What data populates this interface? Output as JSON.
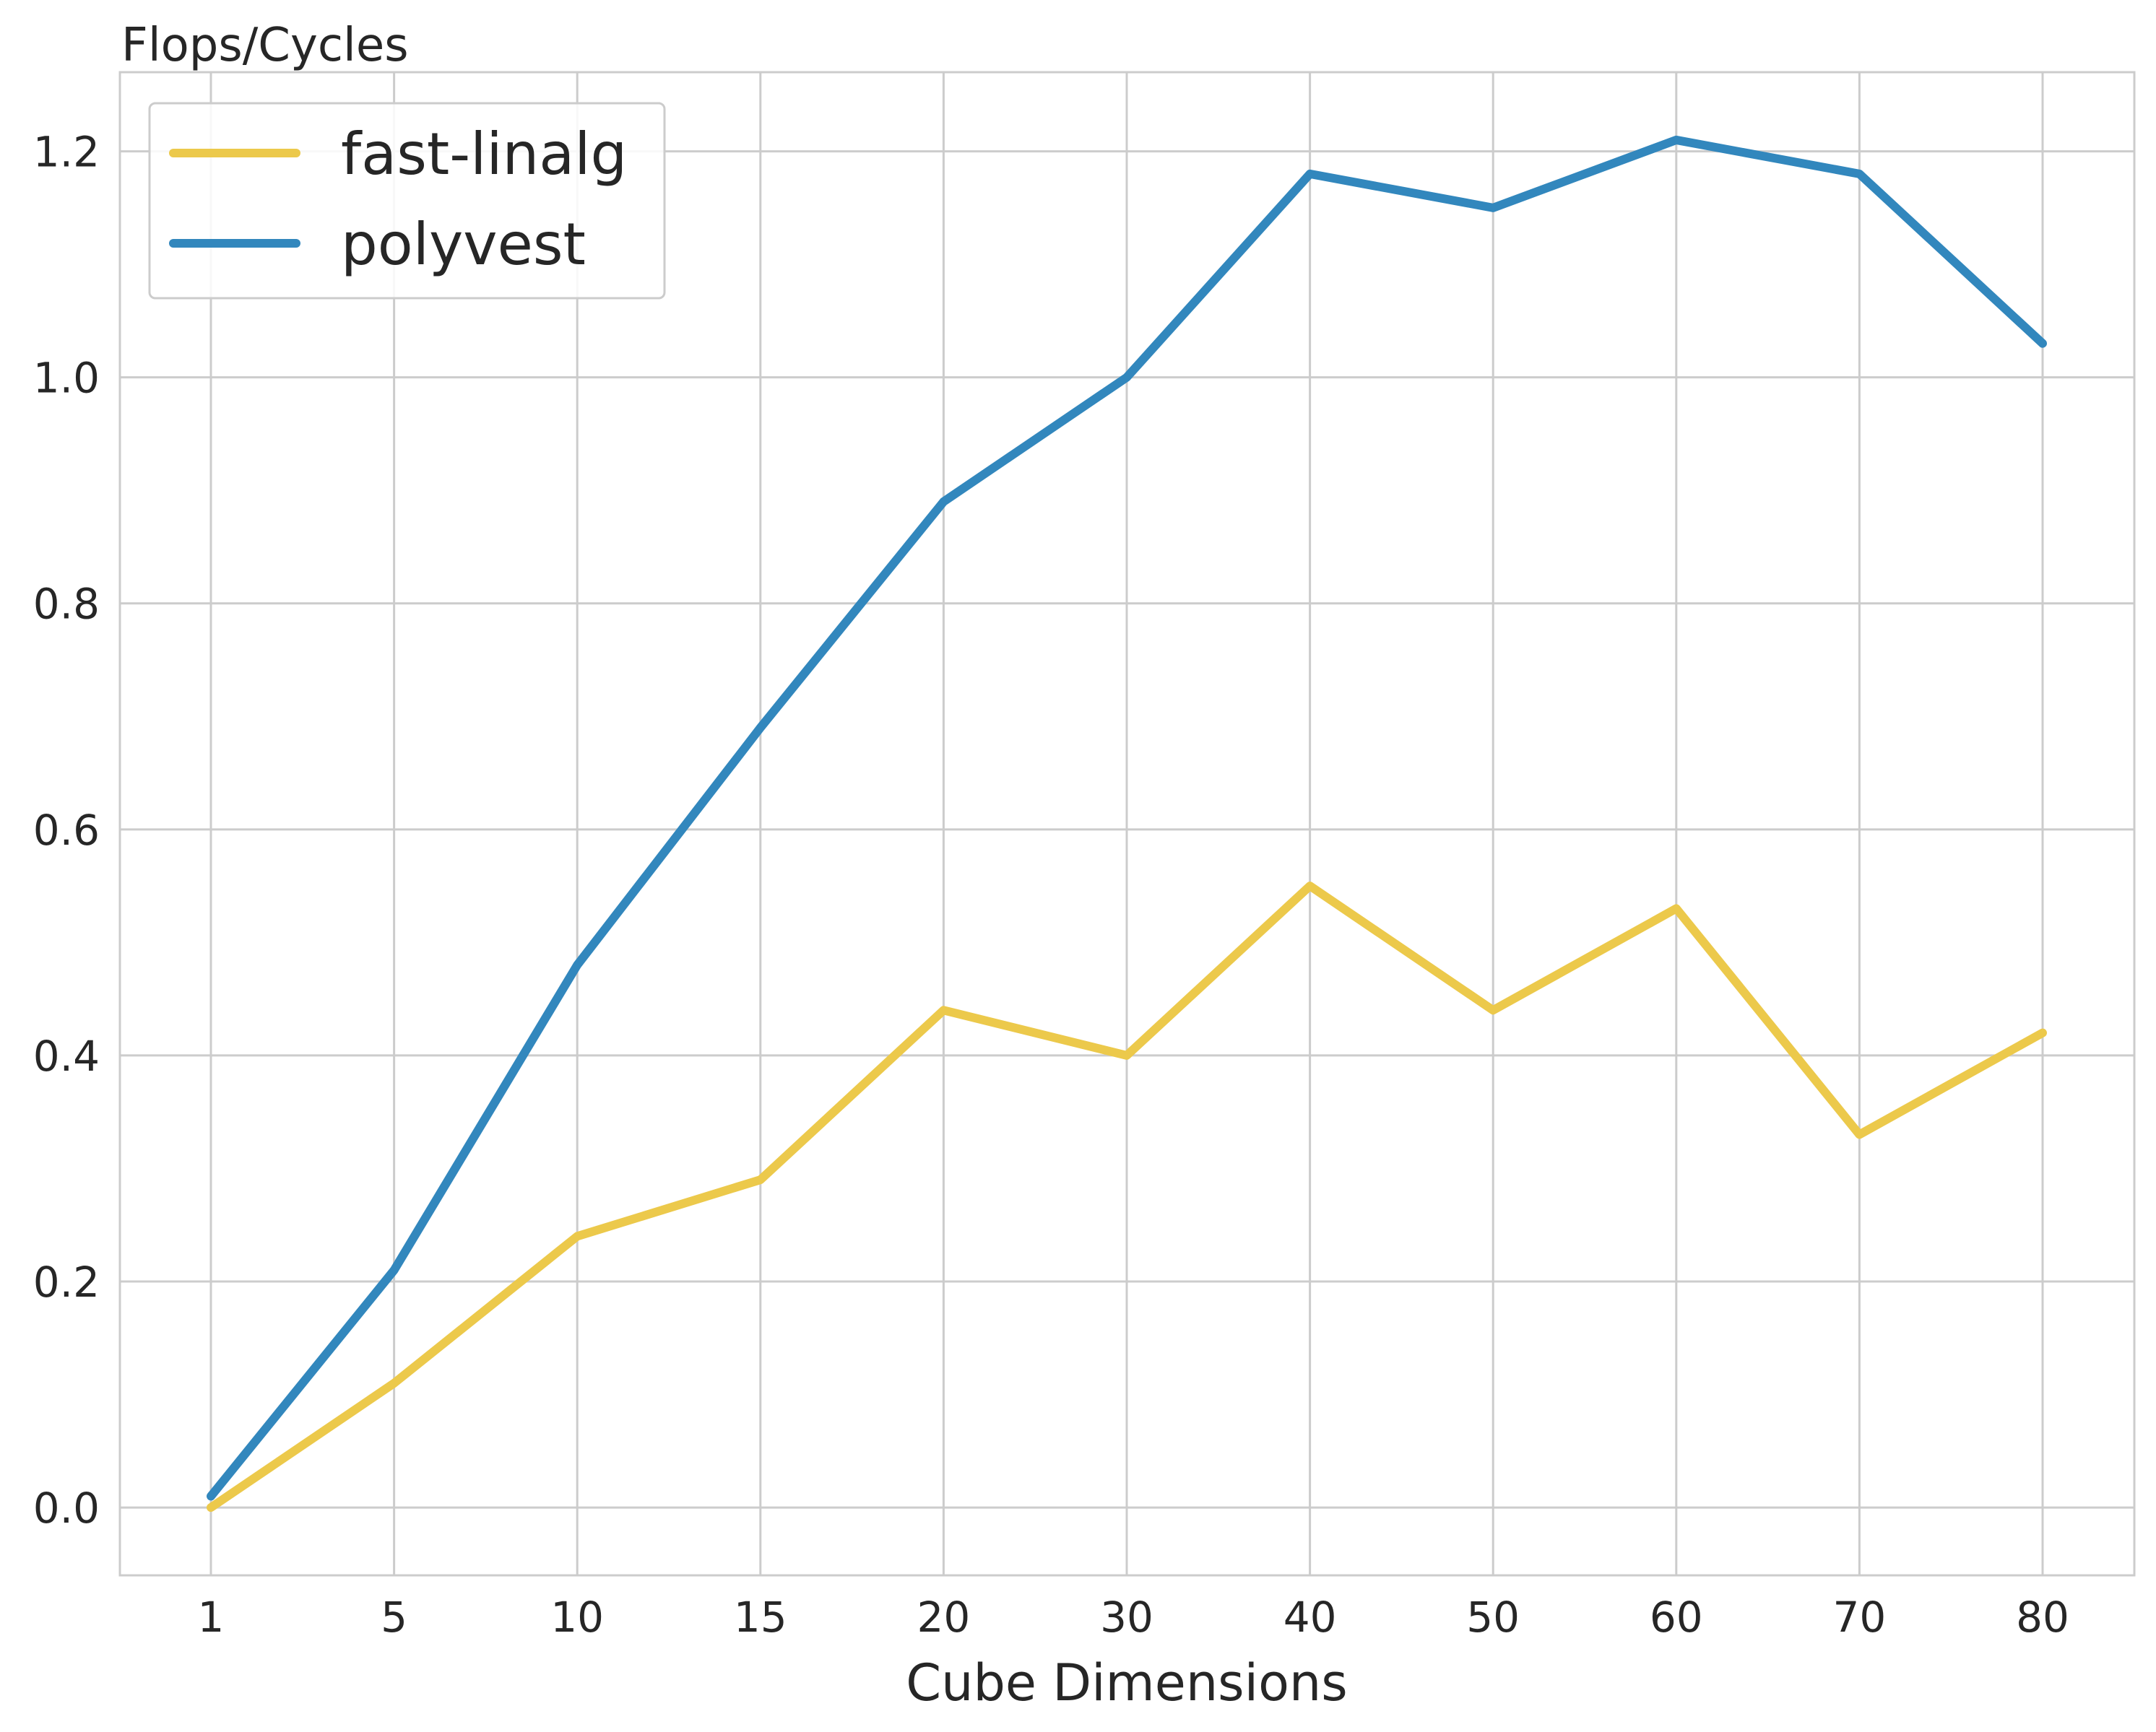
{
  "chart_data": {
    "type": "line",
    "ylabel": "Flops/Cycles",
    "xlabel": "Cube Dimensions",
    "categories": [
      "1",
      "5",
      "10",
      "15",
      "20",
      "30",
      "40",
      "50",
      "60",
      "70",
      "80"
    ],
    "ylim": [
      -0.06,
      1.27
    ],
    "yticks": [
      0.0,
      0.2,
      0.4,
      0.6,
      0.8,
      1.0,
      1.2
    ],
    "ytick_labels": [
      "0.0",
      "0.2",
      "0.4",
      "0.6",
      "0.8",
      "1.0",
      "1.2"
    ],
    "grid": true,
    "legend_position": "top-left",
    "series": [
      {
        "name": "fast-linalg",
        "color": "#ecc94b",
        "values": [
          0.0,
          0.11,
          0.24,
          0.29,
          0.44,
          0.4,
          0.55,
          0.44,
          0.53,
          0.33,
          0.42
        ]
      },
      {
        "name": "polyvest",
        "color": "#3287bd",
        "values": [
          0.01,
          0.21,
          0.48,
          0.69,
          0.89,
          1.0,
          1.18,
          1.15,
          1.21,
          1.18,
          1.03
        ]
      }
    ]
  }
}
